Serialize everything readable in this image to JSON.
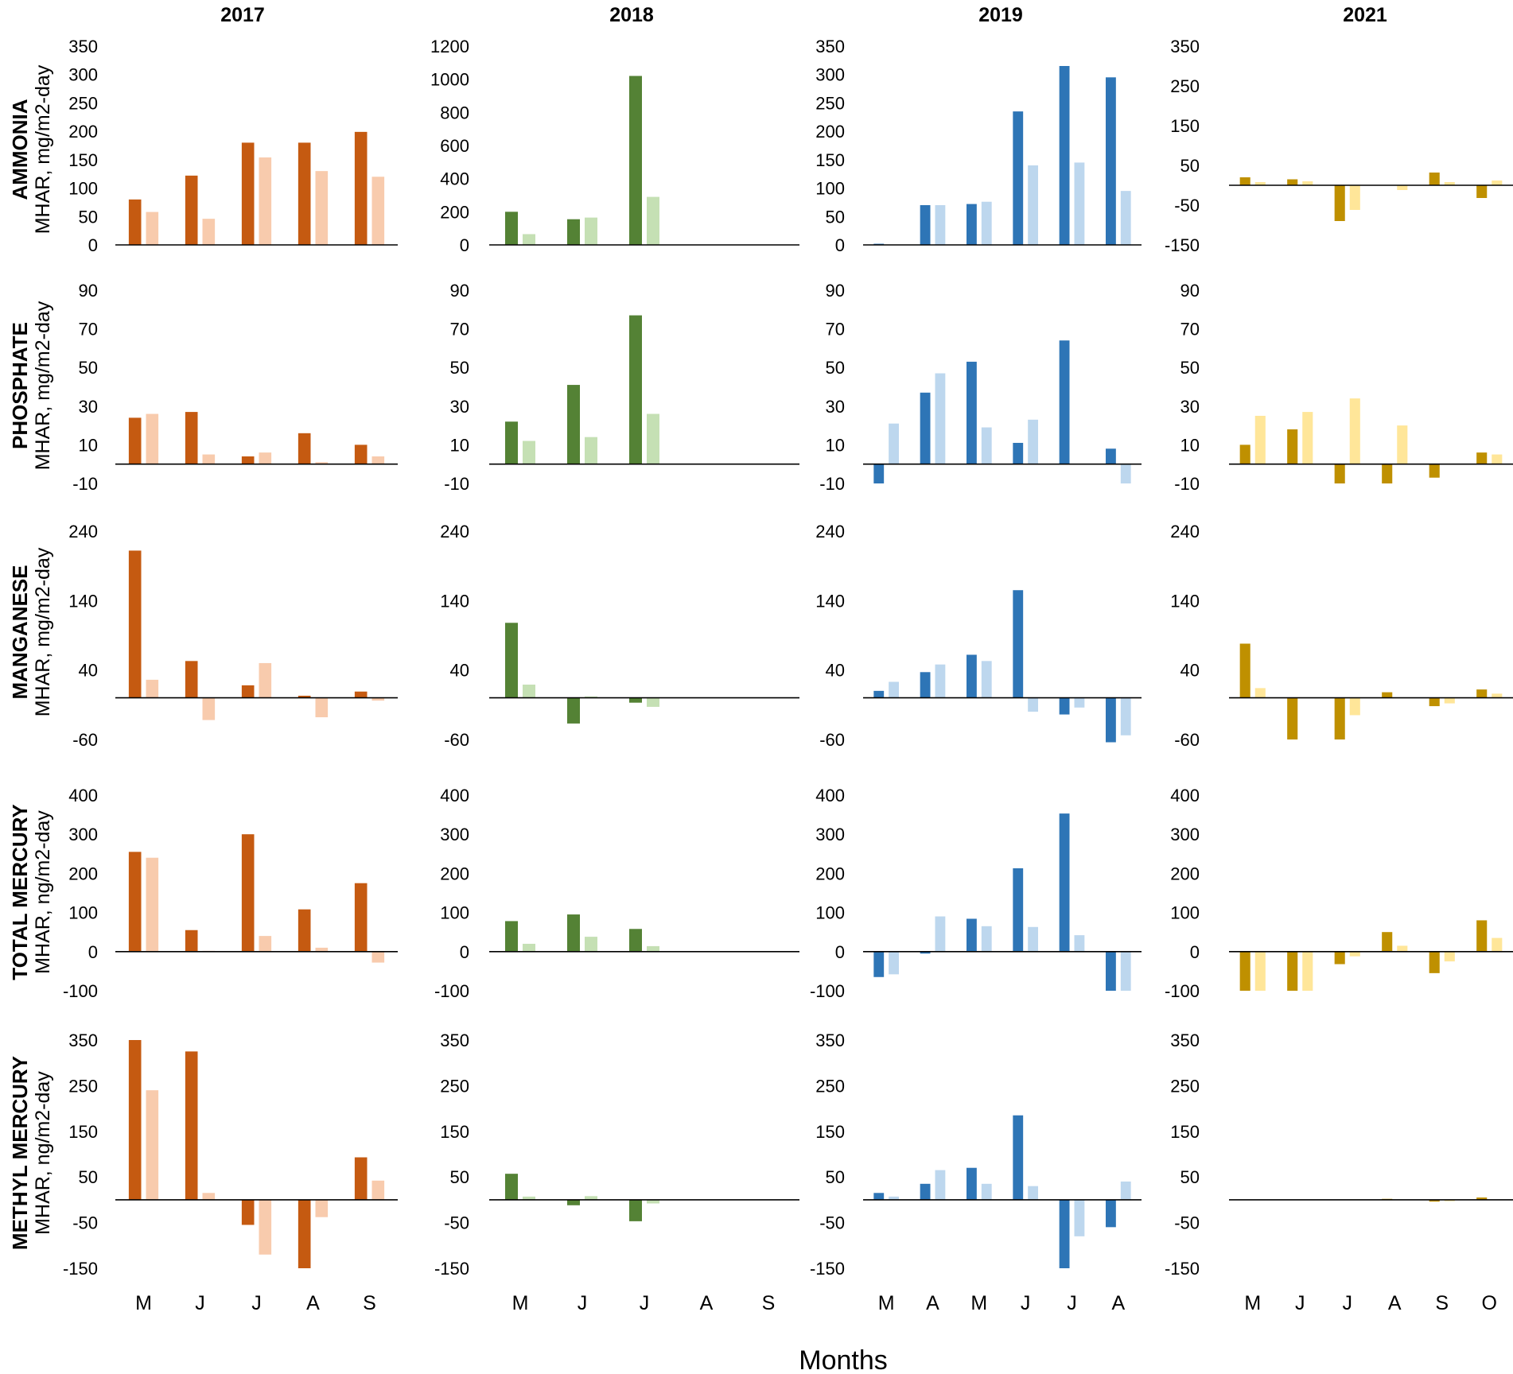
{
  "years": [
    "2017",
    "2018",
    "2019",
    "2021"
  ],
  "x_axis_title": "Months",
  "colors": {
    "2017": {
      "dark": "#c55a11",
      "light": "#f8cbad"
    },
    "2018": {
      "dark": "#548235",
      "light": "#c5e0b4"
    },
    "2019": {
      "dark": "#2e75b6",
      "light": "#bdd7ee"
    },
    "2021": {
      "dark": "#bf9000",
      "light": "#ffe699"
    }
  },
  "months": {
    "2017": [
      "M",
      "J",
      "J",
      "A",
      "S"
    ],
    "2018": [
      "M",
      "J",
      "J",
      "A",
      "S"
    ],
    "2019": [
      "M",
      "A",
      "M",
      "J",
      "J",
      "A"
    ],
    "2021": [
      "M",
      "J",
      "J",
      "A",
      "S",
      "O"
    ]
  },
  "rows": [
    {
      "id": "ammonia",
      "title": "AMMONIA",
      "unit": "MHAR, mg/m2-day"
    },
    {
      "id": "phosphate",
      "title": "PHOSPHATE",
      "unit": "MHAR, mg/m2-day"
    },
    {
      "id": "manganese",
      "title": "MANGANESE",
      "unit": "MHAR, mg/m2-day"
    },
    {
      "id": "total-mercury",
      "title": "TOTAL MERCURY",
      "unit": "MHAR, ng/m2-day"
    },
    {
      "id": "methyl-mercury",
      "title": "METHYL MERCURY",
      "unit": "MHAR, ng/m2-day"
    }
  ],
  "chart_data": [
    {
      "type": "bar",
      "row": "AMMONIA",
      "year": "2017",
      "ylabel": "MHAR, mg/m2-day",
      "ylim": [
        0,
        350
      ],
      "yticks": [
        "0",
        "50",
        "100",
        "150",
        "200",
        "250",
        "300",
        "350"
      ],
      "categories": [
        "M",
        "J",
        "J",
        "A",
        "S"
      ],
      "series": [
        {
          "name": "dark",
          "values": [
            80,
            122,
            180,
            180,
            199
          ]
        },
        {
          "name": "light",
          "values": [
            58,
            46,
            154,
            130,
            120
          ]
        }
      ]
    },
    {
      "type": "bar",
      "row": "AMMONIA",
      "year": "2018",
      "ylabel": "MHAR, mg/m2-day",
      "ylim": [
        0,
        1200
      ],
      "yticks": [
        "0",
        "200",
        "400",
        "600",
        "800",
        "1000",
        "1200"
      ],
      "categories": [
        "M",
        "J",
        "J",
        "A",
        "S"
      ],
      "series": [
        {
          "name": "dark",
          "values": [
            200,
            155,
            1020,
            null,
            null
          ]
        },
        {
          "name": "light",
          "values": [
            65,
            165,
            290,
            null,
            null
          ]
        }
      ]
    },
    {
      "type": "bar",
      "row": "AMMONIA",
      "year": "2019",
      "ylabel": "MHAR, mg/m2-day",
      "ylim": [
        0,
        350
      ],
      "yticks": [
        "0",
        "50",
        "100",
        "150",
        "200",
        "250",
        "300",
        "350"
      ],
      "categories": [
        "M",
        "A",
        "M",
        "J",
        "J",
        "A"
      ],
      "series": [
        {
          "name": "dark",
          "values": [
            2,
            70,
            72,
            235,
            315,
            295
          ]
        },
        {
          "name": "light",
          "values": [
            0,
            70,
            76,
            140,
            145,
            95
          ]
        }
      ]
    },
    {
      "type": "bar",
      "row": "AMMONIA",
      "year": "2021",
      "ylabel": "MHAR, mg/m2-day",
      "ylim": [
        -150,
        350
      ],
      "yticks": [
        "-150",
        "-50",
        "50",
        "150",
        "250",
        "350"
      ],
      "categories": [
        "M",
        "J",
        "J",
        "A",
        "S",
        "O"
      ],
      "series": [
        {
          "name": "dark",
          "values": [
            20,
            15,
            -90,
            0,
            32,
            -32
          ]
        },
        {
          "name": "light",
          "values": [
            8,
            10,
            -62,
            -12,
            8,
            12
          ]
        }
      ]
    },
    {
      "type": "bar",
      "row": "PHOSPHATE",
      "year": "2017",
      "ylabel": "MHAR, mg/m2-day",
      "ylim": [
        -10,
        90
      ],
      "yticks": [
        "-10",
        "10",
        "30",
        "50",
        "70",
        "90"
      ],
      "categories": [
        "M",
        "J",
        "J",
        "A",
        "S"
      ],
      "series": [
        {
          "name": "dark",
          "values": [
            24,
            27,
            4,
            16,
            10
          ]
        },
        {
          "name": "light",
          "values": [
            26,
            5,
            6,
            1,
            4
          ]
        }
      ]
    },
    {
      "type": "bar",
      "row": "PHOSPHATE",
      "year": "2018",
      "ylabel": "MHAR, mg/m2-day",
      "ylim": [
        -10,
        90
      ],
      "yticks": [
        "-10",
        "10",
        "30",
        "50",
        "70",
        "90"
      ],
      "categories": [
        "M",
        "J",
        "J",
        "A",
        "S"
      ],
      "series": [
        {
          "name": "dark",
          "values": [
            22,
            41,
            77,
            null,
            null
          ]
        },
        {
          "name": "light",
          "values": [
            12,
            14,
            26,
            null,
            null
          ]
        }
      ]
    },
    {
      "type": "bar",
      "row": "PHOSPHATE",
      "year": "2019",
      "ylabel": "MHAR, mg/m2-day",
      "ylim": [
        -10,
        90
      ],
      "yticks": [
        "-10",
        "10",
        "30",
        "50",
        "70",
        "90"
      ],
      "categories": [
        "M",
        "A",
        "M",
        "J",
        "J",
        "A"
      ],
      "series": [
        {
          "name": "dark",
          "values": [
            -10,
            37,
            53,
            11,
            64,
            8
          ]
        },
        {
          "name": "light",
          "values": [
            21,
            47,
            19,
            23,
            0,
            -10
          ]
        }
      ]
    },
    {
      "type": "bar",
      "row": "PHOSPHATE",
      "year": "2021",
      "ylabel": "MHAR, mg/m2-day",
      "ylim": [
        -10,
        90
      ],
      "yticks": [
        "-10",
        "10",
        "30",
        "50",
        "70",
        "90"
      ],
      "categories": [
        "M",
        "J",
        "J",
        "A",
        "S",
        "O"
      ],
      "series": [
        {
          "name": "dark",
          "values": [
            10,
            18,
            -10,
            -10,
            -7,
            6
          ]
        },
        {
          "name": "light",
          "values": [
            25,
            27,
            34,
            20,
            0,
            5
          ]
        }
      ]
    },
    {
      "type": "bar",
      "row": "MANGANESE",
      "year": "2017",
      "ylabel": "MHAR, mg/m2-day",
      "ylim": [
        -60,
        240
      ],
      "yticks": [
        "-60",
        "40",
        "140",
        "240"
      ],
      "categories": [
        "M",
        "J",
        "J",
        "A",
        "S"
      ],
      "series": [
        {
          "name": "dark",
          "values": [
            212,
            53,
            18,
            3,
            9
          ]
        },
        {
          "name": "light",
          "values": [
            26,
            -32,
            50,
            -28,
            -4
          ]
        }
      ]
    },
    {
      "type": "bar",
      "row": "MANGANESE",
      "year": "2018",
      "ylabel": "MHAR, mg/m2-day",
      "ylim": [
        -60,
        240
      ],
      "yticks": [
        "-60",
        "40",
        "140",
        "240"
      ],
      "categories": [
        "M",
        "J",
        "J",
        "A",
        "S"
      ],
      "series": [
        {
          "name": "dark",
          "values": [
            108,
            -37,
            -7,
            null,
            null
          ]
        },
        {
          "name": "light",
          "values": [
            19,
            2,
            -13,
            null,
            null
          ]
        }
      ]
    },
    {
      "type": "bar",
      "row": "MANGANESE",
      "year": "2019",
      "ylabel": "MHAR, mg/m2-day",
      "ylim": [
        -60,
        240
      ],
      "yticks": [
        "-60",
        "40",
        "140",
        "240"
      ],
      "categories": [
        "M",
        "A",
        "M",
        "J",
        "J",
        "A"
      ],
      "series": [
        {
          "name": "dark",
          "values": [
            10,
            37,
            62,
            155,
            -24,
            -64
          ]
        },
        {
          "name": "light",
          "values": [
            23,
            48,
            53,
            -20,
            -14,
            -54
          ]
        }
      ]
    },
    {
      "type": "bar",
      "row": "MANGANESE",
      "year": "2021",
      "ylabel": "MHAR, mg/m2-day",
      "ylim": [
        -60,
        240
      ],
      "yticks": [
        "-60",
        "40",
        "140",
        "240"
      ],
      "categories": [
        "M",
        "J",
        "J",
        "A",
        "S",
        "O"
      ],
      "series": [
        {
          "name": "dark",
          "values": [
            78,
            -60,
            -60,
            8,
            -12,
            12
          ]
        },
        {
          "name": "light",
          "values": [
            14,
            0,
            -25,
            0,
            -8,
            6
          ]
        }
      ]
    },
    {
      "type": "bar",
      "row": "TOTAL MERCURY",
      "year": "2017",
      "ylabel": "MHAR, ng/m2-day",
      "ylim": [
        -100,
        400
      ],
      "yticks": [
        "-100",
        "0",
        "100",
        "200",
        "300",
        "400"
      ],
      "categories": [
        "M",
        "J",
        "J",
        "A",
        "S"
      ],
      "series": [
        {
          "name": "dark",
          "values": [
            255,
            55,
            300,
            108,
            175
          ]
        },
        {
          "name": "light",
          "values": [
            240,
            2,
            40,
            10,
            -28
          ]
        }
      ]
    },
    {
      "type": "bar",
      "row": "TOTAL MERCURY",
      "year": "2018",
      "ylabel": "MHAR, ng/m2-day",
      "ylim": [
        -100,
        400
      ],
      "yticks": [
        "-100",
        "0",
        "100",
        "200",
        "300",
        "400"
      ],
      "categories": [
        "M",
        "J",
        "J",
        "A",
        "S"
      ],
      "series": [
        {
          "name": "dark",
          "values": [
            78,
            95,
            58,
            null,
            null
          ]
        },
        {
          "name": "light",
          "values": [
            20,
            38,
            14,
            null,
            null
          ]
        }
      ]
    },
    {
      "type": "bar",
      "row": "TOTAL MERCURY",
      "year": "2019",
      "ylabel": "MHAR, ng/m2-day",
      "ylim": [
        -100,
        400
      ],
      "yticks": [
        "-100",
        "0",
        "100",
        "200",
        "300",
        "400"
      ],
      "categories": [
        "M",
        "A",
        "M",
        "J",
        "J",
        "A"
      ],
      "series": [
        {
          "name": "dark",
          "values": [
            -65,
            -5,
            84,
            213,
            353,
            -100
          ]
        },
        {
          "name": "light",
          "values": [
            -58,
            90,
            65,
            63,
            42,
            -100
          ]
        }
      ]
    },
    {
      "type": "bar",
      "row": "TOTAL MERCURY",
      "year": "2021",
      "ylabel": "MHAR, ng/m2-day",
      "ylim": [
        -100,
        400
      ],
      "yticks": [
        "-100",
        "0",
        "100",
        "200",
        "300",
        "400"
      ],
      "categories": [
        "M",
        "J",
        "J",
        "A",
        "S",
        "O"
      ],
      "series": [
        {
          "name": "dark",
          "values": [
            -100,
            -100,
            -32,
            50,
            -55,
            80
          ]
        },
        {
          "name": "light",
          "values": [
            -100,
            -100,
            -12,
            15,
            -25,
            35
          ]
        }
      ]
    },
    {
      "type": "bar",
      "row": "METHYL MERCURY",
      "year": "2017",
      "ylabel": "MHAR, ng/m2-day",
      "ylim": [
        -150,
        350
      ],
      "yticks": [
        "-150",
        "-50",
        "50",
        "150",
        "250",
        "350"
      ],
      "categories": [
        "M",
        "J",
        "J",
        "A",
        "S"
      ],
      "series": [
        {
          "name": "dark",
          "values": [
            350,
            325,
            -55,
            -150,
            93
          ]
        },
        {
          "name": "light",
          "values": [
            240,
            15,
            -120,
            -38,
            42
          ]
        }
      ]
    },
    {
      "type": "bar",
      "row": "METHYL MERCURY",
      "year": "2018",
      "ylabel": "MHAR, ng/m2-day",
      "ylim": [
        -150,
        350
      ],
      "yticks": [
        "-150",
        "-50",
        "50",
        "150",
        "250",
        "350"
      ],
      "categories": [
        "M",
        "J",
        "J",
        "A",
        "S"
      ],
      "series": [
        {
          "name": "dark",
          "values": [
            57,
            -12,
            -47,
            null,
            null
          ]
        },
        {
          "name": "light",
          "values": [
            7,
            8,
            -8,
            null,
            null
          ]
        }
      ]
    },
    {
      "type": "bar",
      "row": "METHYL MERCURY",
      "year": "2019",
      "ylabel": "MHAR, ng/m2-day",
      "ylim": [
        -150,
        350
      ],
      "yticks": [
        "-150",
        "-50",
        "50",
        "150",
        "250",
        "350"
      ],
      "categories": [
        "M",
        "A",
        "M",
        "J",
        "J",
        "A"
      ],
      "series": [
        {
          "name": "dark",
          "values": [
            15,
            35,
            70,
            185,
            -150,
            -60
          ]
        },
        {
          "name": "light",
          "values": [
            7,
            65,
            35,
            30,
            -80,
            40
          ]
        }
      ]
    },
    {
      "type": "bar",
      "row": "METHYL MERCURY",
      "year": "2021",
      "ylabel": "MHAR, ng/m2-day",
      "ylim": [
        -150,
        350
      ],
      "yticks": [
        "-150",
        "-50",
        "50",
        "150",
        "250",
        "350"
      ],
      "categories": [
        "M",
        "J",
        "J",
        "A",
        "S",
        "O"
      ],
      "series": [
        {
          "name": "dark",
          "values": [
            0,
            0,
            0,
            2,
            -4,
            5
          ]
        },
        {
          "name": "light",
          "values": [
            0,
            0,
            1,
            0,
            -3,
            0
          ]
        }
      ]
    }
  ]
}
